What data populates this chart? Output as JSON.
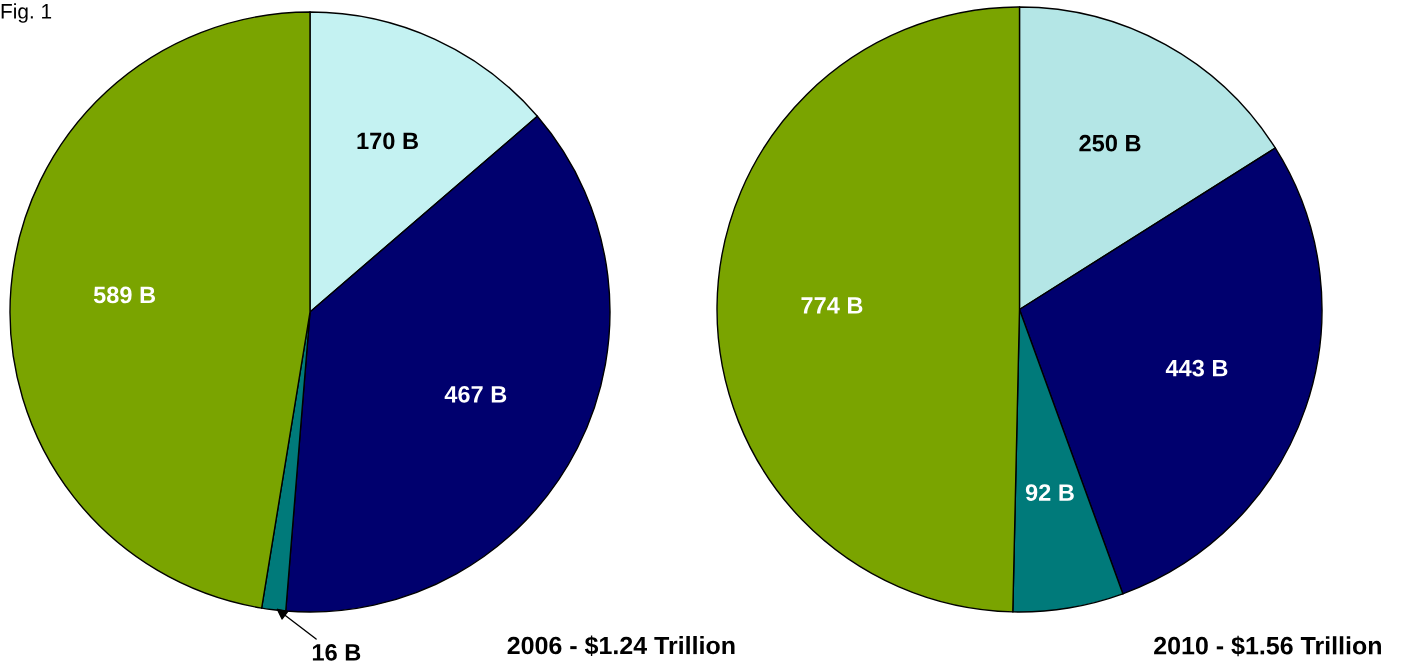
{
  "chart_data": [
    {
      "type": "pie",
      "title": "2006 - $1.24 Trillion",
      "categories": [
        null,
        null,
        null,
        null
      ],
      "values": [
        170,
        467,
        16,
        589
      ],
      "colors": [
        "#c4f2f2",
        "#00006e",
        "#007a7a",
        "#7aa400"
      ],
      "value_labels": [
        "170 B",
        "467 B",
        "16 B",
        "589 B"
      ],
      "annotations": [
        "Fig. 1"
      ]
    },
    {
      "type": "pie",
      "title": "2010 - $1.56 Trillion",
      "categories": [
        null,
        null,
        null,
        null
      ],
      "values": [
        250,
        443,
        92,
        774
      ],
      "colors": [
        "#b4e6e6",
        "#00006e",
        "#007a7a",
        "#7aa400"
      ],
      "value_labels": [
        "250 B",
        "443 B",
        "92 B",
        "774 B"
      ]
    }
  ]
}
